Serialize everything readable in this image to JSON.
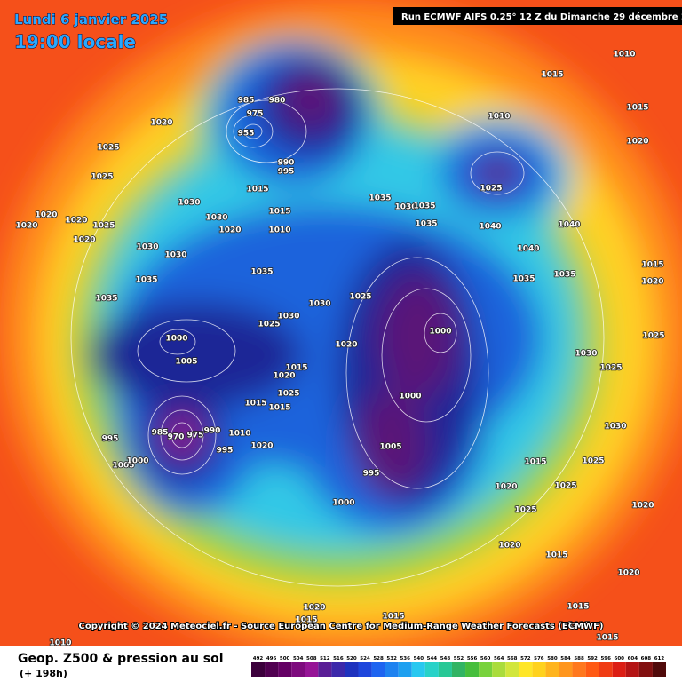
{
  "header": {
    "date": "Lundi 6 janvier 2025",
    "time": "19:00 locale",
    "run": "Run ECMWF AIFS 0.25° 12 Z du Dimanche 29 décembre 2024"
  },
  "copyright": "Copyright © 2024 Meteociel.fr - Source European Centre for Medium-Range Weather Forecasts (ECMWF)",
  "footer": {
    "title": "Geop. Z500 & pression au sol",
    "lead": "(+ 198h)"
  },
  "scale": {
    "ticks": [
      492,
      496,
      500,
      504,
      508,
      512,
      516,
      520,
      524,
      528,
      532,
      536,
      540,
      544,
      548,
      552,
      556,
      560,
      564,
      568,
      572,
      576,
      580,
      584,
      588,
      592,
      596,
      600,
      604,
      608,
      612
    ],
    "colors": [
      "#3c003c",
      "#500050",
      "#640064",
      "#7d0a7d",
      "#961496",
      "#5a1e96",
      "#3c28aa",
      "#1e32be",
      "#1e46dc",
      "#1e64f0",
      "#1e82f0",
      "#1ea0f0",
      "#28c8f0",
      "#28d2c8",
      "#28c896",
      "#32b464",
      "#46be3c",
      "#78d23c",
      "#aadc3c",
      "#d2e63c",
      "#ffe628",
      "#ffd21e",
      "#ffb41e",
      "#ff961e",
      "#ff781e",
      "#ff5a14",
      "#f03c14",
      "#dc1e14",
      "#b41414",
      "#821010",
      "#500a0a"
    ]
  },
  "pressure_labels": [
    985,
    980,
    975,
    955,
    1020,
    1025,
    1025,
    1020,
    1020,
    1020,
    1025,
    1020,
    1030,
    1030,
    1020,
    1030,
    1030,
    1035,
    1035,
    1015,
    990,
    995,
    1015,
    1010,
    1035,
    1030,
    1025,
    1030,
    1025,
    1020,
    1000,
    1005,
    1015,
    1020,
    1025,
    1015,
    1015,
    985,
    970,
    975,
    990,
    995,
    1010,
    1020,
    995,
    1005,
    1000,
    1000,
    1000,
    1005,
    995,
    1000,
    1035,
    1030,
    1035,
    1035,
    1040,
    1010,
    1025,
    1015,
    1010,
    1015,
    1020,
    1040,
    1040,
    1035,
    1035,
    1030,
    1025,
    1030,
    1025,
    1015,
    1020,
    1025,
    1020,
    1015,
    1020,
    1020,
    1015,
    1015,
    1015,
    1020,
    1015,
    1015,
    1010,
    1025,
    1015,
    1020,
    1025
  ]
}
